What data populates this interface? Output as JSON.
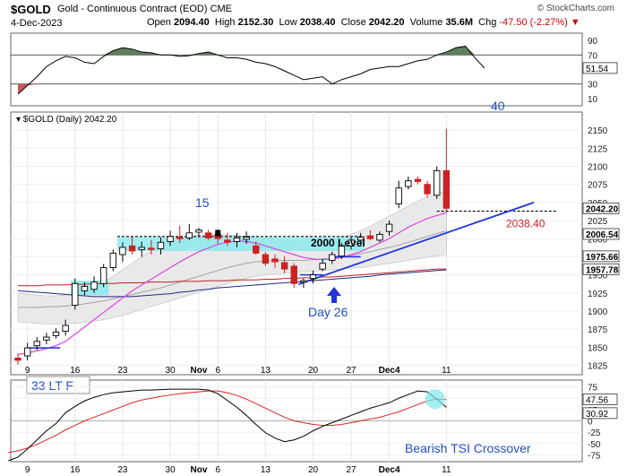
{
  "header": {
    "symbol": "$GOLD",
    "description": "Gold - Continuous Contract (EOD) CME",
    "brand": "© StockCharts.com",
    "date": "4-Dec-2023",
    "open_label": "Open",
    "open": "2094.40",
    "high_label": "High",
    "high": "2152.30",
    "low_label": "Low",
    "low": "2038.40",
    "close_label": "Close",
    "close": "2042.20",
    "volume_label": "Volume",
    "volume": "35.6M",
    "chg_label": "Chg",
    "chg": "-47.50 (-2.27%)",
    "chg_arrow": "▼"
  },
  "colors": {
    "up_candle": "#ffffff",
    "down_candle": "#cc2222",
    "rsi_fill": "#5f7f5f",
    "ma_short": "#dd44dd",
    "ma_long_red": "#bb2222",
    "ma_long_navy": "#1c2a80",
    "trend": "#2233dd",
    "highlight": "#7fe8ee",
    "tsi_signal": "#dd2222",
    "blue_text": "#1f4fc8"
  },
  "chart_data": [
    {
      "id": "rsi",
      "type": "line",
      "title": "",
      "yticks": [
        90,
        70,
        50,
        30,
        10
      ],
      "ylim": [
        0,
        100
      ],
      "levels": [
        70,
        30
      ],
      "last_label": "51.54",
      "values": [
        16,
        28,
        40,
        54,
        62,
        68,
        66,
        60,
        58,
        68,
        76,
        80,
        78,
        74,
        73,
        70,
        70,
        68,
        69,
        72,
        74,
        70,
        66,
        66,
        64,
        60,
        58,
        54,
        48,
        42,
        36,
        38,
        40,
        30,
        36,
        40,
        44,
        50,
        52,
        54,
        54,
        58,
        62,
        64,
        70,
        74,
        80,
        82,
        66,
        52
      ]
    },
    {
      "id": "price",
      "type": "candlestick",
      "title": "$GOLD (Daily) 2042.20",
      "yticks": [
        2150,
        2125,
        2100,
        2075,
        2050,
        2025,
        2000,
        1975,
        1950,
        1925,
        1900,
        1875,
        1850,
        1825
      ],
      "ylim": [
        1812,
        2175
      ],
      "xticks": [
        "9",
        "16",
        "23",
        "30",
        "Nov",
        "6",
        "13",
        "20",
        "27",
        "Dec4",
        "11"
      ],
      "candles": [
        {
          "d": "Oct 6",
          "o": 1835,
          "h": 1841,
          "l": 1826,
          "c": 1832
        },
        {
          "d": "Oct 9",
          "o": 1838,
          "h": 1856,
          "l": 1832,
          "c": 1849
        },
        {
          "d": "Oct 10",
          "o": 1852,
          "h": 1864,
          "l": 1846,
          "c": 1858
        },
        {
          "d": "Oct 11",
          "o": 1860,
          "h": 1870,
          "l": 1854,
          "c": 1864
        },
        {
          "d": "Oct 12",
          "o": 1866,
          "h": 1876,
          "l": 1862,
          "c": 1871
        },
        {
          "d": "Oct 13",
          "o": 1872,
          "h": 1888,
          "l": 1866,
          "c": 1880
        },
        {
          "d": "Oct 16",
          "o": 1908,
          "h": 1945,
          "l": 1902,
          "c": 1938
        },
        {
          "d": "Oct 17",
          "o": 1928,
          "h": 1940,
          "l": 1922,
          "c": 1934
        },
        {
          "d": "Oct 18",
          "o": 1930,
          "h": 1948,
          "l": 1925,
          "c": 1940
        },
        {
          "d": "Oct 19",
          "o": 1938,
          "h": 1965,
          "l": 1933,
          "c": 1960
        },
        {
          "d": "Oct 20",
          "o": 1960,
          "h": 1985,
          "l": 1955,
          "c": 1980
        },
        {
          "d": "Oct 23",
          "o": 1978,
          "h": 1995,
          "l": 1968,
          "c": 1988
        },
        {
          "d": "Oct 24",
          "o": 1990,
          "h": 2003,
          "l": 1978,
          "c": 1983
        },
        {
          "d": "Oct 25",
          "o": 1985,
          "h": 1996,
          "l": 1975,
          "c": 1988
        },
        {
          "d": "Oct 26",
          "o": 1987,
          "h": 1998,
          "l": 1978,
          "c": 1985
        },
        {
          "d": "Oct 27",
          "o": 1986,
          "h": 2002,
          "l": 1978,
          "c": 1995
        },
        {
          "d": "Oct 30",
          "o": 1996,
          "h": 2011,
          "l": 1990,
          "c": 2003
        },
        {
          "d": "Oct 31",
          "o": 2002,
          "h": 2018,
          "l": 1994,
          "c": 2000
        },
        {
          "d": "Nov 1",
          "o": 2001,
          "h": 2020,
          "l": 1998,
          "c": 2008
        },
        {
          "d": "Nov 2",
          "o": 2009,
          "h": 2015,
          "l": 2002,
          "c": 2012
        },
        {
          "d": "Nov 3",
          "o": 2008,
          "h": 2012,
          "l": 1998,
          "c": 2001
        },
        {
          "d": "Nov 6",
          "o": 2006,
          "h": 2013,
          "l": 1993,
          "c": 2000
        },
        {
          "d": "Nov 7",
          "o": 1998,
          "h": 2008,
          "l": 1990,
          "c": 1995
        },
        {
          "d": "Nov 8",
          "o": 1996,
          "h": 2008,
          "l": 1988,
          "c": 2001
        },
        {
          "d": "Nov 9",
          "o": 1999,
          "h": 2010,
          "l": 1993,
          "c": 2002
        },
        {
          "d": "Nov 10",
          "o": 1990,
          "h": 1996,
          "l": 1978,
          "c": 1980
        },
        {
          "d": "Nov 13",
          "o": 1978,
          "h": 1982,
          "l": 1962,
          "c": 1966
        },
        {
          "d": "Nov 14",
          "o": 1972,
          "h": 1978,
          "l": 1960,
          "c": 1968
        },
        {
          "d": "Nov 15",
          "o": 1967,
          "h": 1976,
          "l": 1952,
          "c": 1958
        },
        {
          "d": "Nov 16",
          "o": 1962,
          "h": 1966,
          "l": 1932,
          "c": 1938
        },
        {
          "d": "Nov 17",
          "o": 1940,
          "h": 1945,
          "l": 1932,
          "c": 1942
        },
        {
          "d": "Nov 20",
          "o": 1945,
          "h": 1956,
          "l": 1938,
          "c": 1950
        },
        {
          "d": "Nov 21",
          "o": 1958,
          "h": 1972,
          "l": 1955,
          "c": 1966
        },
        {
          "d": "Nov 22",
          "o": 1970,
          "h": 1982,
          "l": 1965,
          "c": 1978
        },
        {
          "d": "Nov 24",
          "o": 1976,
          "h": 1994,
          "l": 1972,
          "c": 1990
        },
        {
          "d": "Nov 27",
          "o": 1990,
          "h": 2002,
          "l": 1985,
          "c": 1998
        },
        {
          "d": "Nov 28",
          "o": 1998,
          "h": 2008,
          "l": 1990,
          "c": 2002
        },
        {
          "d": "Nov 29",
          "o": 2004,
          "h": 2012,
          "l": 1998,
          "c": 2000
        },
        {
          "d": "Nov 30",
          "o": 1998,
          "h": 2010,
          "l": 1995,
          "c": 2006
        },
        {
          "d": "Dec 1",
          "o": 2010,
          "h": 2025,
          "l": 2004,
          "c": 2020
        },
        {
          "d": "Dec 4a",
          "o": 2048,
          "h": 2080,
          "l": 2042,
          "c": 2070
        },
        {
          "d": "Dec 4b",
          "o": 2072,
          "h": 2086,
          "l": 2068,
          "c": 2080
        },
        {
          "d": "Dec 4c",
          "o": 2082,
          "h": 2086,
          "l": 2075,
          "c": 2079
        },
        {
          "d": "Dec 4d",
          "o": 2075,
          "h": 2080,
          "l": 2057,
          "c": 2062
        },
        {
          "d": "Dec 4e",
          "o": 2060,
          "h": 2100,
          "l": 2055,
          "c": 2094
        },
        {
          "d": "Dec 4f",
          "o": 2094,
          "h": 2152,
          "l": 2038,
          "c": 2042
        }
      ],
      "ma_short": [
        1840,
        1842,
        1845,
        1848,
        1852,
        1858,
        1868,
        1878,
        1888,
        1898,
        1908,
        1918,
        1928,
        1936,
        1944,
        1952,
        1960,
        1968,
        1975,
        1982,
        1987,
        1992,
        1995,
        1997,
        1996,
        1994,
        1990,
        1986,
        1982,
        1978,
        1974,
        1972,
        1971,
        1972,
        1974,
        1978,
        1982,
        1988,
        1994,
        2000,
        2008,
        2016,
        2022,
        2028,
        2032,
        2036
      ],
      "ma_mid": [
        1905,
        1905,
        1905,
        1906,
        1906,
        1907,
        1908,
        1910,
        1912,
        1914,
        1917,
        1920,
        1923,
        1926,
        1929,
        1932,
        1936,
        1940,
        1944,
        1948,
        1952,
        1956,
        1960,
        1963,
        1966,
        1968,
        1969,
        1970,
        1970,
        1970,
        1970,
        1971,
        1972,
        1973,
        1975,
        1977,
        1979,
        1982,
        1985,
        1988,
        1991,
        1995,
        1999,
        2003,
        2007,
        2011
      ],
      "band_upper": [
        1925,
        1923,
        1922,
        1921,
        1921,
        1922,
        1924,
        1928,
        1933,
        1940,
        1948,
        1957,
        1966,
        1975,
        1983,
        1990,
        1996,
        2000,
        2003,
        2005,
        2006,
        2006,
        2005,
        2004,
        2003,
        2002,
        2000,
        1999,
        1998,
        1997,
        1996,
        1996,
        1997,
        1999,
        2002,
        2006,
        2011,
        2017,
        2024,
        2031,
        2038,
        2045,
        2052,
        2058,
        2062,
        2066
      ],
      "band_lower": [
        1885,
        1884,
        1883,
        1882,
        1882,
        1882,
        1883,
        1884,
        1886,
        1888,
        1891,
        1894,
        1898,
        1902,
        1906,
        1910,
        1914,
        1918,
        1922,
        1926,
        1930,
        1934,
        1938,
        1942,
        1945,
        1948,
        1950,
        1951,
        1952,
        1953,
        1954,
        1955,
        1956,
        1957,
        1958,
        1959,
        1960,
        1962,
        1964,
        1966,
        1968,
        1970,
        1972,
        1974,
        1976,
        1978
      ],
      "ma_long_red": [
        1935,
        1935,
        1935,
        1936,
        1936,
        1936,
        1937,
        1937,
        1938,
        1938,
        1938,
        1939,
        1939,
        1939,
        1940,
        1940,
        1940,
        1941,
        1941,
        1941,
        1942,
        1942,
        1942,
        1943,
        1943,
        1943,
        1944,
        1944,
        1945,
        1945,
        1946,
        1946,
        1947,
        1947,
        1948,
        1949,
        1950,
        1951,
        1952,
        1953,
        1954,
        1955,
        1956,
        1957,
        1958,
        1958
      ],
      "ma_long_navy": [
        1928,
        1927,
        1926,
        1925,
        1924,
        1923,
        1922,
        1921,
        1920,
        1920,
        1920,
        1920,
        1920,
        1921,
        1922,
        1923,
        1924,
        1926,
        1927,
        1929,
        1930,
        1932,
        1933,
        1934,
        1935,
        1936,
        1937,
        1938,
        1939,
        1940,
        1941,
        1942,
        1943,
        1944,
        1945,
        1946,
        1947,
        1948,
        1950,
        1951,
        1952,
        1953,
        1954,
        1955,
        1956,
        1957
      ],
      "level_2000": 2000,
      "labels": {
        "last_close": "2042.20",
        "low_line": "2038.40",
        "box_2006": "2006.54",
        "box_1975": "1975.66",
        "box_1957": "1957.78",
        "level_text": "2000 Level",
        "count_40": "40",
        "count_15": "15",
        "day26": "Day 26",
        "lt_f": "33 LT F"
      }
    },
    {
      "id": "tsi",
      "type": "line",
      "title": "",
      "yticks": [
        75,
        50,
        25,
        0,
        -25,
        -50,
        -75
      ],
      "ylim": [
        -90,
        90
      ],
      "last_tsi": "30.92",
      "last_signal": "47.56",
      "tsi": [
        -88,
        -80,
        -62,
        -42,
        -22,
        -6,
        18,
        32,
        44,
        52,
        58,
        62,
        64,
        66,
        68,
        68,
        69,
        70,
        70,
        70,
        70,
        68,
        60,
        45,
        30,
        12,
        -8,
        -26,
        -38,
        -46,
        -42,
        -34,
        -22,
        -12,
        -4,
        4,
        12,
        20,
        28,
        34,
        40,
        50,
        58,
        66,
        64,
        48,
        30
      ],
      "signal": [
        -70,
        -66,
        -60,
        -52,
        -42,
        -32,
        -20,
        -10,
        0,
        8,
        16,
        24,
        32,
        40,
        46,
        50,
        54,
        57,
        60,
        62,
        64,
        66,
        66,
        62,
        56,
        48,
        38,
        28,
        18,
        8,
        0,
        -4,
        -8,
        -10,
        -10,
        -8,
        -4,
        0,
        4,
        8,
        14,
        20,
        28,
        36,
        44,
        48,
        47
      ],
      "annotation": "Bearish TSI Crossover"
    }
  ]
}
